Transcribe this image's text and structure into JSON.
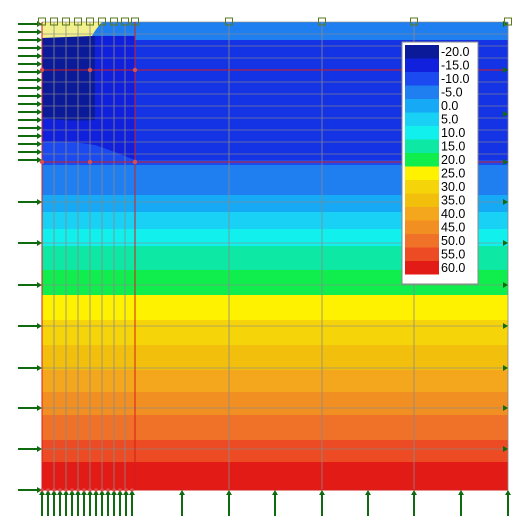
{
  "title": "",
  "legend": {
    "entries": [
      {
        "label": "-20.0",
        "color": "#0a1a99"
      },
      {
        "label": "-15.0",
        "color": "#1020dc"
      },
      {
        "label": "-10.0",
        "color": "#1a4af0"
      },
      {
        "label": "-5.0",
        "color": "#1f7ef0"
      },
      {
        "label": "0.0",
        "color": "#16a9f5"
      },
      {
        "label": "5.0",
        "color": "#19d0f5"
      },
      {
        "label": "10.0",
        "color": "#12f0ee"
      },
      {
        "label": "15.0",
        "color": "#0ee8a5"
      },
      {
        "label": "20.0",
        "color": "#10ee4e"
      },
      {
        "label": "25.0",
        "color": "#fff200"
      },
      {
        "label": "30.0",
        "color": "#f6d40a"
      },
      {
        "label": "35.0",
        "color": "#f2bf0d"
      },
      {
        "label": "40.0",
        "color": "#f4a61c"
      },
      {
        "label": "45.0",
        "color": "#f28f22"
      },
      {
        "label": "50.0",
        "color": "#f07228"
      },
      {
        "label": "55.0",
        "color": "#ec4b23"
      },
      {
        "label": "60.0",
        "color": "#e31b17"
      }
    ]
  },
  "colors": {
    "mesh_line": "#8a8a8a",
    "red_line": "#d61e1e",
    "arrow": "#106b10",
    "frozen_zone": "#f2f08c"
  }
}
